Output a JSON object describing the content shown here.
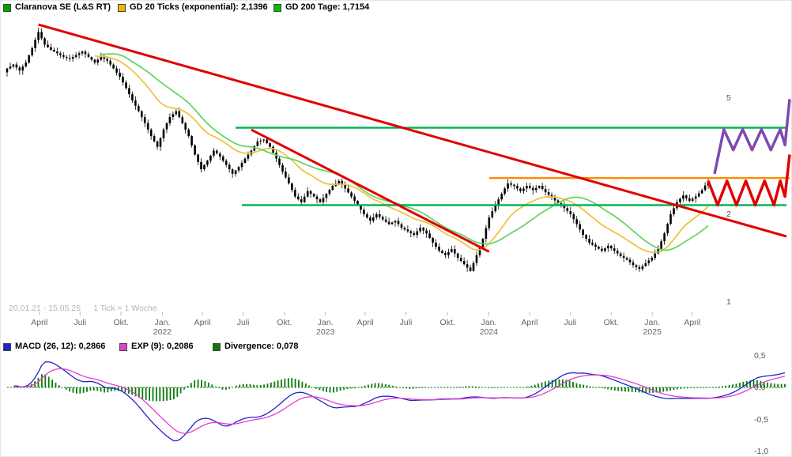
{
  "legend": {
    "items": [
      {
        "label": "Claranova SE (L&S RT)",
        "color": "#00a000"
      },
      {
        "label": "GD 20 Ticks (exponential): 2,1396",
        "color": "#f0b400"
      },
      {
        "label": "GD 200 Tage: 1,7154",
        "color": "#00c000"
      }
    ]
  },
  "macd_legend": {
    "items": [
      {
        "label": "MACD (26, 12): 0,2866",
        "color": "#2222cc"
      },
      {
        "label": "EXP (9): 0,2086",
        "color": "#e040d0"
      },
      {
        "label": "Divergence: 0,078",
        "color": "#0b7a0b"
      }
    ]
  },
  "footer": {
    "range_text": "20.01.21 - 15.05.25",
    "tick_text": "1 Tick = 1 Woche"
  },
  "y_axis_main": {
    "ticks": [
      {
        "label": "5",
        "price": 5
      },
      {
        "label": "2",
        "price": 2
      },
      {
        "label": "1",
        "price": 1
      }
    ]
  },
  "y_axis_macd": {
    "ticks": [
      {
        "label": "0,5",
        "value": 0.5
      },
      {
        "label": "0,0",
        "value": 0
      },
      {
        "label": "-0,5",
        "value": -0.5
      },
      {
        "label": "-1,0",
        "value": -1
      }
    ]
  },
  "x_axis": {
    "labels": [
      {
        "text": "April",
        "week": 10.3
      },
      {
        "text": "Juli",
        "week": 23.3
      },
      {
        "text": "Okt.",
        "week": 36.4
      },
      {
        "text": "Jan.",
        "week": 49.6,
        "year": "2022"
      },
      {
        "text": "April",
        "week": 62.4
      },
      {
        "text": "Juli",
        "week": 75.4
      },
      {
        "text": "Okt.",
        "week": 88.6
      },
      {
        "text": "Jan.",
        "week": 101.7,
        "year": "2023"
      },
      {
        "text": "April",
        "week": 114.4
      },
      {
        "text": "Juli",
        "week": 127.4
      },
      {
        "text": "Okt.",
        "week": 140.7
      },
      {
        "text": "Jan.",
        "week": 153.9,
        "year": "2024"
      },
      {
        "text": "April",
        "week": 166.9
      },
      {
        "text": "Juli",
        "week": 179.9
      },
      {
        "text": "Okt.",
        "week": 193.0
      },
      {
        "text": "Jan.",
        "week": 206.1,
        "year": "2025"
      },
      {
        "text": "April",
        "week": 218.9
      }
    ]
  },
  "chart_data": {
    "type": "candlestick",
    "title": "Claranova SE (L&S RT)",
    "x_range": {
      "start": "20.01.21",
      "end": "15.05.25",
      "interval": "1 Woche"
    },
    "y_axis": {
      "scale": "log",
      "ticks": [
        5,
        2,
        1
      ]
    },
    "indicators": {
      "gd20_exponential": 2.1396,
      "gd200_tage": 1.7154,
      "macd_26_12": 0.2866,
      "exp_9": 0.2086,
      "divergence": 0.078
    },
    "macd_axis": {
      "ticks": [
        0.5,
        0.0,
        -0.5,
        -1.0
      ]
    },
    "closes_biweekly": [
      6.3,
      6.5,
      6.2,
      6.6,
      7.4,
      8.4,
      7.6,
      7.3,
      7.1,
      6.9,
      6.8,
      7.0,
      7.2,
      6.9,
      6.6,
      6.9,
      6.7,
      6.3,
      5.9,
      5.4,
      4.9,
      4.5,
      4.1,
      3.7,
      3.4,
      3.9,
      4.3,
      4.5,
      4.1,
      3.7,
      3.2,
      2.85,
      3.05,
      3.3,
      3.15,
      2.95,
      2.75,
      2.9,
      3.1,
      3.3,
      3.55,
      3.6,
      3.4,
      3.1,
      2.8,
      2.55,
      2.3,
      2.2,
      2.4,
      2.3,
      2.2,
      2.35,
      2.5,
      2.6,
      2.45,
      2.3,
      2.15,
      2.0,
      1.9,
      2.0,
      1.92,
      1.85,
      1.9,
      1.8,
      1.75,
      1.7,
      1.8,
      1.72,
      1.6,
      1.5,
      1.45,
      1.52,
      1.42,
      1.35,
      1.28,
      1.45,
      1.65,
      1.95,
      2.15,
      2.35,
      2.55,
      2.5,
      2.4,
      2.5,
      2.42,
      2.5,
      2.38,
      2.28,
      2.18,
      2.1,
      2.0,
      1.85,
      1.7,
      1.6,
      1.55,
      1.5,
      1.56,
      1.5,
      1.44,
      1.4,
      1.34,
      1.3,
      1.36,
      1.42,
      1.52,
      1.72,
      2.0,
      2.2,
      2.32,
      2.22,
      2.3,
      2.42,
      2.6
    ],
    "weeks_per_point": 2,
    "colors": {
      "candle": "#000000",
      "gd20": "#f0c038",
      "gd200": "#5fd35f",
      "macd": "#2222cc",
      "signal": "#e040d0",
      "divergence": "#0b7a0b",
      "trend": "#e00000",
      "support_green": "#00b050",
      "resistance_orange": "#ff8a00",
      "projection_purple": "#8048b0"
    },
    "horizontal_lines": [
      {
        "color": "#00b050",
        "price": 3.95,
        "from_week": 73,
        "to_week": 249
      },
      {
        "color": "#00b050",
        "price": 2.15,
        "from_week": 75,
        "to_week": 249
      },
      {
        "color": "#ff8a00",
        "price": 2.66,
        "from_week": 154,
        "to_week": 250
      }
    ],
    "trend_lines": [
      {
        "color": "#e00000",
        "width": 3,
        "from": {
          "week": 10,
          "price": 8.9
        },
        "to": {
          "week": 249,
          "price": 1.68
        }
      },
      {
        "color": "#e00000",
        "width": 3,
        "from": {
          "week": 78,
          "price": 3.89
        },
        "to": {
          "week": 154,
          "price": 1.49
        }
      }
    ],
    "projections": [
      {
        "color": "#8048b0",
        "width": 3.5,
        "points": [
          [
            226,
            2.75
          ],
          [
            229,
            3.9
          ],
          [
            232,
            3.32
          ],
          [
            235,
            3.9
          ],
          [
            238,
            3.32
          ],
          [
            241,
            3.9
          ],
          [
            244,
            3.32
          ],
          [
            247,
            3.9
          ],
          [
            248.5,
            3.45
          ],
          [
            250,
            4.95
          ]
        ]
      },
      {
        "color": "#e00000",
        "width": 3.5,
        "points": [
          [
            224,
            2.6
          ],
          [
            227,
            2.15
          ],
          [
            230,
            2.6
          ],
          [
            233,
            2.15
          ],
          [
            236,
            2.6
          ],
          [
            239,
            2.15
          ],
          [
            242,
            2.6
          ],
          [
            245,
            2.15
          ],
          [
            247,
            2.6
          ],
          [
            248.5,
            2.3
          ],
          [
            250,
            3.2
          ]
        ]
      }
    ]
  }
}
